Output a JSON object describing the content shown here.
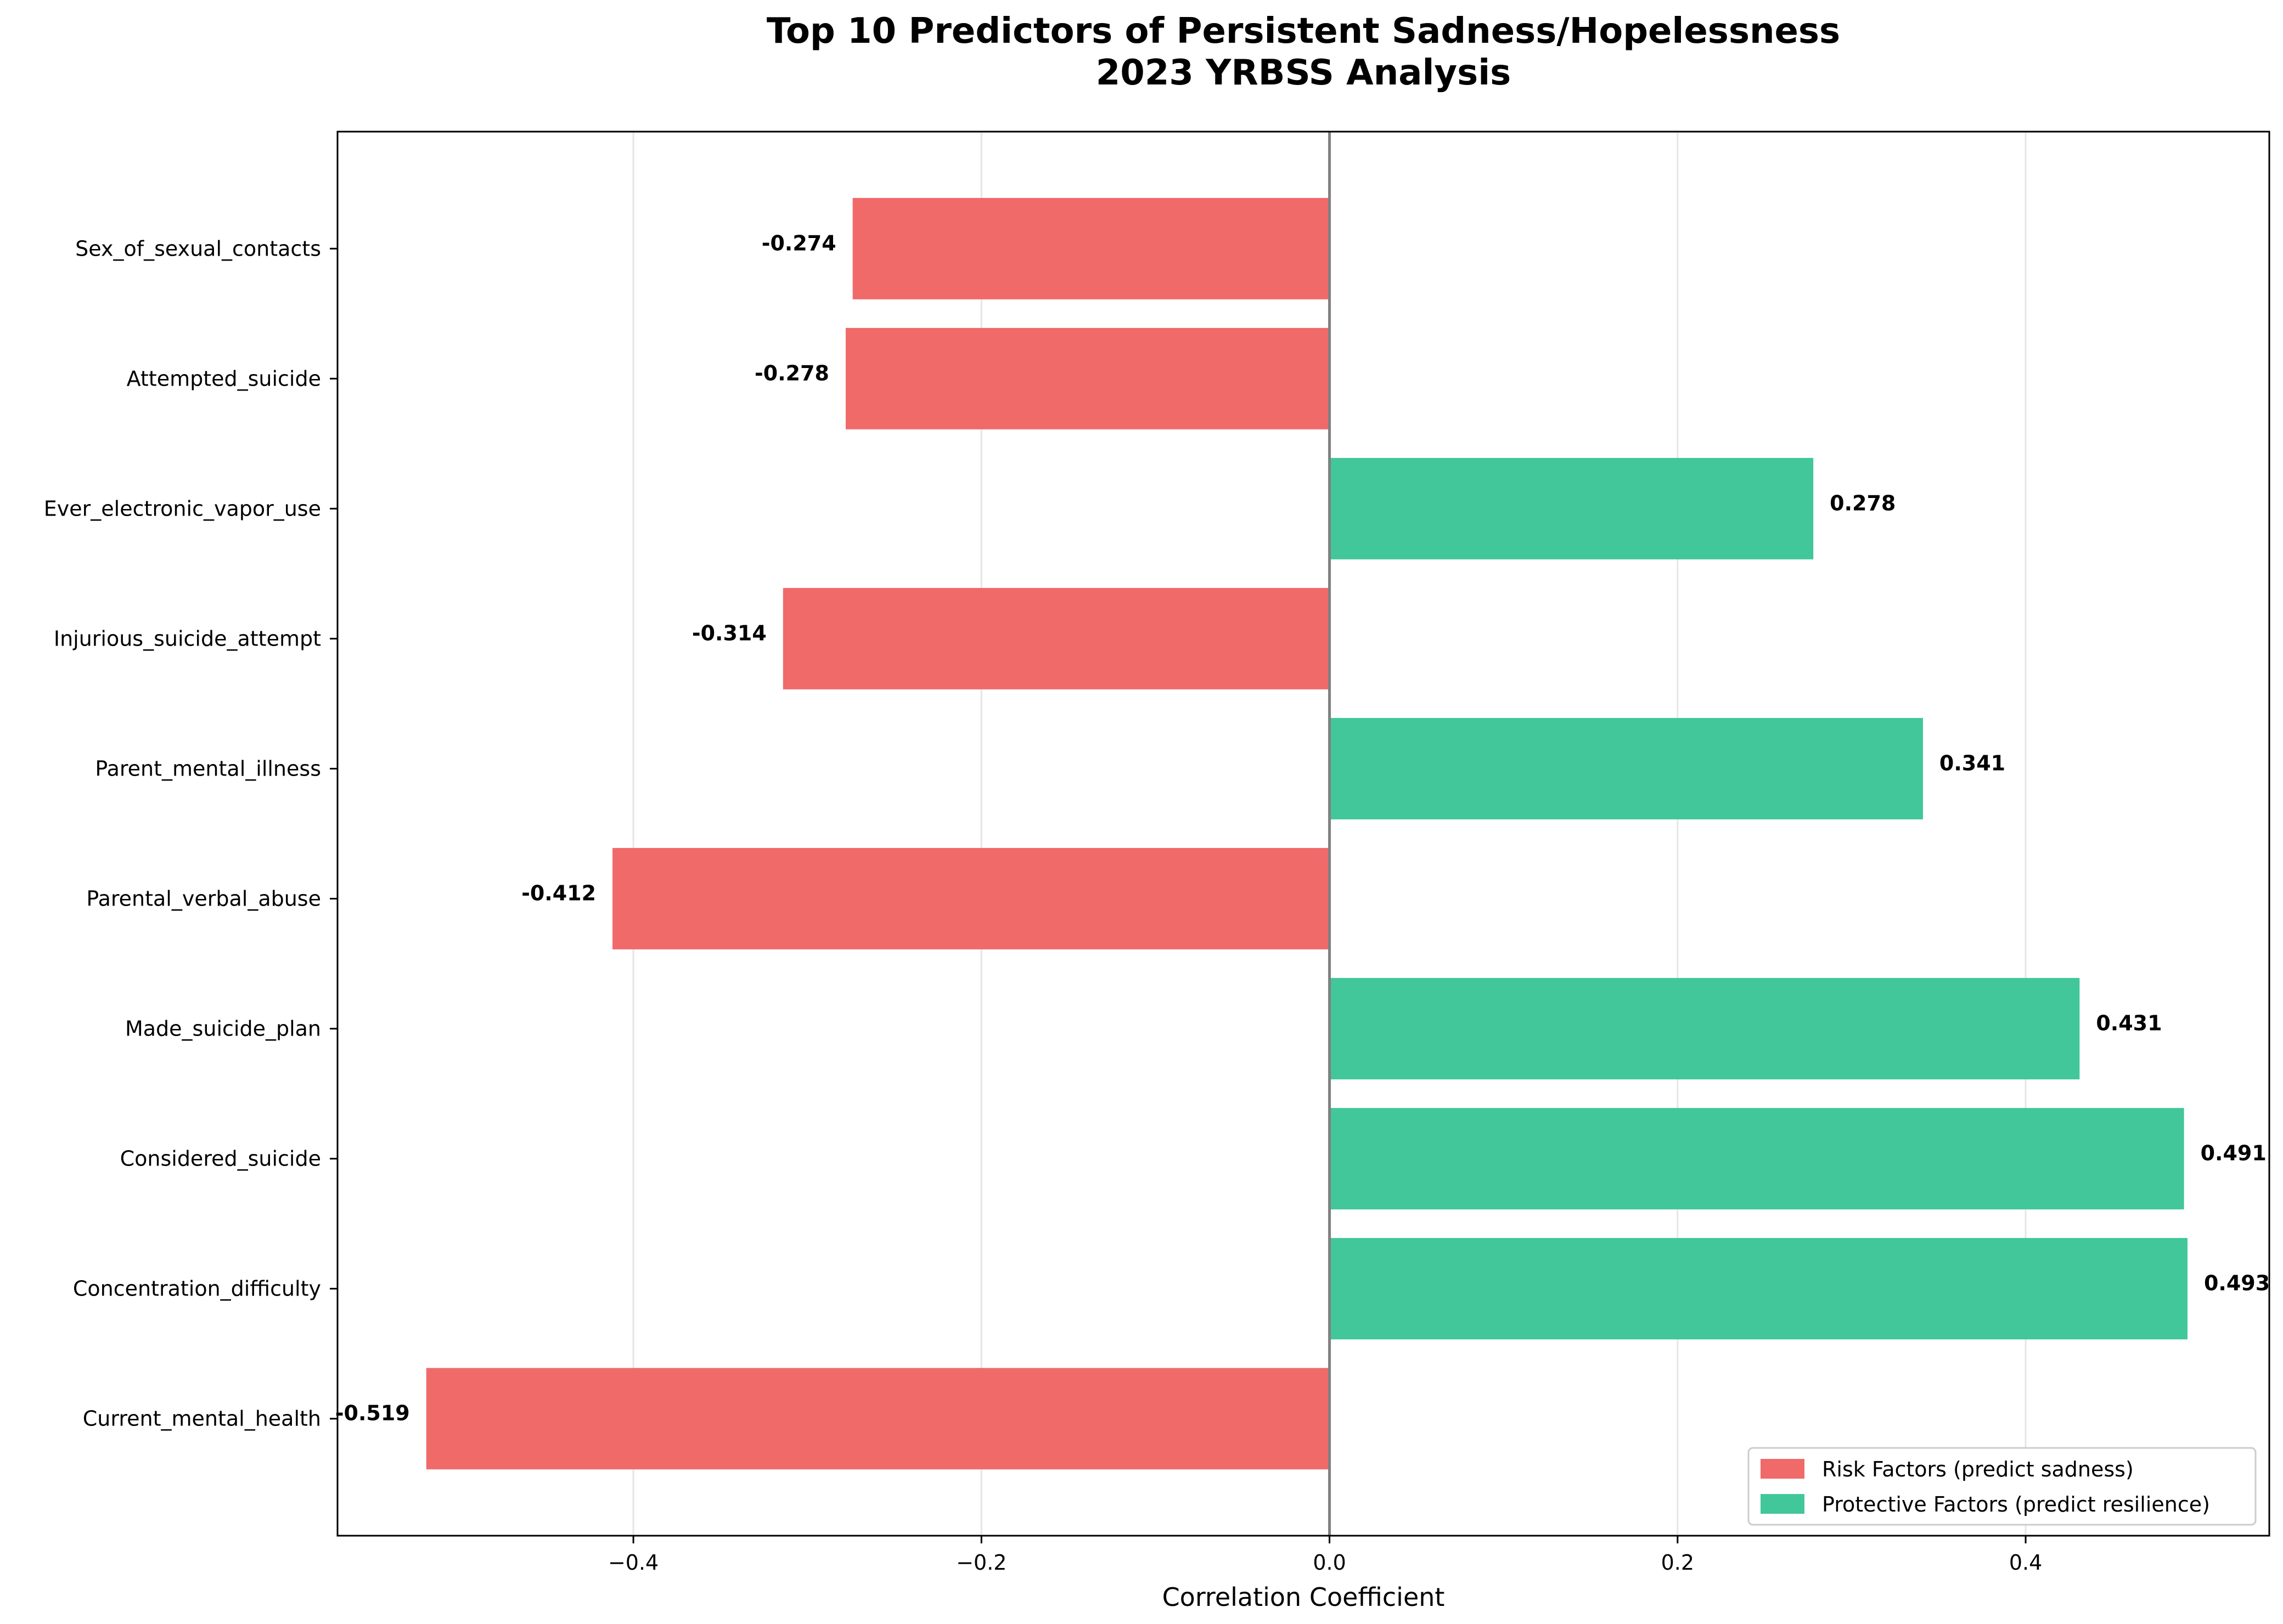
{
  "chart_data": {
    "type": "bar",
    "orientation": "horizontal",
    "title_line1": "Top 10 Predictors of Persistent Sadness/Hopelessness",
    "title_line2": "2023 YRBSS Analysis",
    "xlabel": "Correlation Coefficient",
    "ylabel": "",
    "xlim": [
      -0.57,
      0.54
    ],
    "xticks": [
      -0.4,
      -0.2,
      0.0,
      0.2,
      0.4
    ],
    "xtick_labels": [
      "−0.4",
      "−0.2",
      "0.0",
      "0.2",
      "0.4"
    ],
    "grid": "vertical",
    "legend_position": "bottom-right",
    "categories": [
      "Sex_of_sexual_contacts",
      "Attempted_suicide",
      "Ever_electronic_vapor_use",
      "Injurious_suicide_attempt",
      "Parent_mental_illness",
      "Parental_verbal_abuse",
      "Made_suicide_plan",
      "Considered_suicide",
      "Concentration_difficulty",
      "Current_mental_health"
    ],
    "values": [
      -0.274,
      -0.278,
      0.278,
      -0.314,
      0.341,
      -0.412,
      0.431,
      0.491,
      0.493,
      -0.519
    ],
    "value_labels": [
      "-0.274",
      "-0.278",
      "0.278",
      "-0.314",
      "0.341",
      "-0.412",
      "0.431",
      "0.491",
      "0.493",
      "-0.519"
    ],
    "series": [
      {
        "name": "Risk Factors (predict sadness)",
        "color": "#f06a6a"
      },
      {
        "name": "Protective Factors (predict resilience)",
        "color": "#41c79a"
      }
    ]
  }
}
